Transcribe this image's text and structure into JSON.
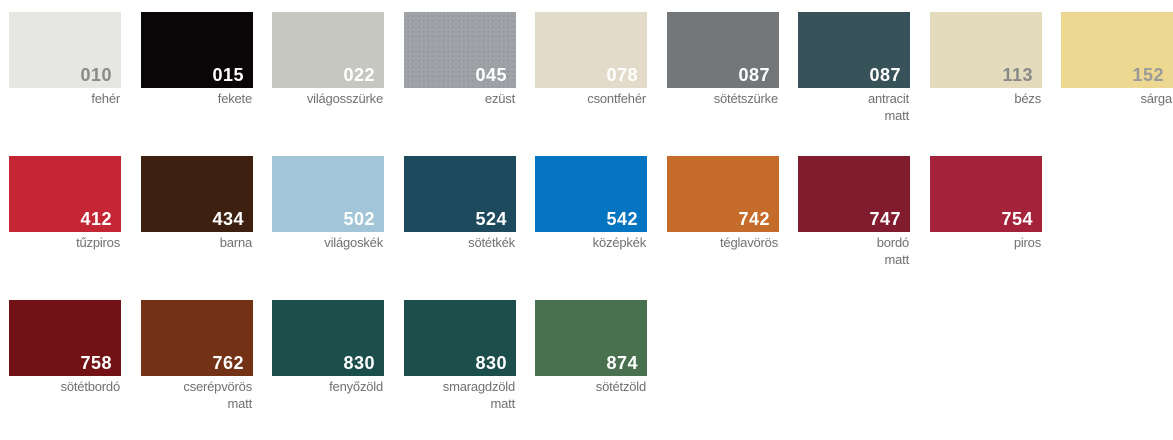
{
  "colors": [
    [
      {
        "code": "010",
        "name": "fehér",
        "sub": "",
        "bg": "#e6e7e2",
        "fg": "#8a8a8a"
      },
      {
        "code": "015",
        "name": "fekete",
        "sub": "",
        "bg": "#0a0506",
        "fg": "#ffffff"
      },
      {
        "code": "022",
        "name": "világosszürke",
        "sub": "",
        "bg": "#c6c7c0",
        "fg": "#ffffff"
      },
      {
        "code": "045",
        "name": "ezüst",
        "sub": "",
        "bg": "#9da1a5",
        "fg": "#ffffff"
      },
      {
        "code": "078",
        "name": "csontfehér",
        "sub": "",
        "bg": "#e3dbc9",
        "fg": "#ffffff"
      },
      {
        "code": "087",
        "name": "sötétszürke",
        "sub": "",
        "bg": "#73777a",
        "fg": "#ffffff"
      },
      {
        "code": "087",
        "name": "antracit",
        "sub": "matt",
        "bg": "#38525a",
        "fg": "#ffffff"
      },
      {
        "code": "113",
        "name": "bézs",
        "sub": "",
        "bg": "#e3dbbc",
        "fg": "#8a8a8a"
      },
      {
        "code": "152",
        "name": "sárga",
        "sub": "",
        "bg": "#ecd890",
        "fg": "#9a9a9a"
      }
    ],
    [
      {
        "code": "412",
        "name": "tűzpiros",
        "sub": "",
        "bg": "#c52636",
        "fg": "#ffffff"
      },
      {
        "code": "434",
        "name": "barna",
        "sub": "",
        "bg": "#3e2011",
        "fg": "#ffffff"
      },
      {
        "code": "502",
        "name": "világoskék",
        "sub": "",
        "bg": "#a2c6d7",
        "fg": "#ffffff"
      },
      {
        "code": "524",
        "name": "sötétkék",
        "sub": "",
        "bg": "#1d4a5c",
        "fg": "#ffffff"
      },
      {
        "code": "542",
        "name": "középkék",
        "sub": "",
        "bg": "#0574c1",
        "fg": "#ffffff"
      },
      {
        "code": "742",
        "name": "téglavörös",
        "sub": "",
        "bg": "#c66c2a",
        "fg": "#ffffff"
      },
      {
        "code": "747",
        "name": "bordó",
        "sub": "matt",
        "bg": "#801c2d",
        "fg": "#ffffff"
      },
      {
        "code": "754",
        "name": "piros",
        "sub": "",
        "bg": "#a4233b",
        "fg": "#ffffff"
      }
    ],
    [
      {
        "code": "758",
        "name": "sötétbordó",
        "sub": "",
        "bg": "#731216",
        "fg": "#ffffff"
      },
      {
        "code": "762",
        "name": "cserépvörös",
        "sub": "matt",
        "bg": "#733116",
        "fg": "#ffffff"
      },
      {
        "code": "830",
        "name": "fenyőzöld",
        "sub": "",
        "bg": "#1c4e4c",
        "fg": "#ffffff"
      },
      {
        "code": "830",
        "name": "smaragdzöld",
        "sub": "matt",
        "bg": "#1c4e4c",
        "fg": "#ffffff"
      },
      {
        "code": "874",
        "name": "sötétzöld",
        "sub": "",
        "bg": "#4a714f",
        "fg": "#ffffff"
      }
    ]
  ]
}
